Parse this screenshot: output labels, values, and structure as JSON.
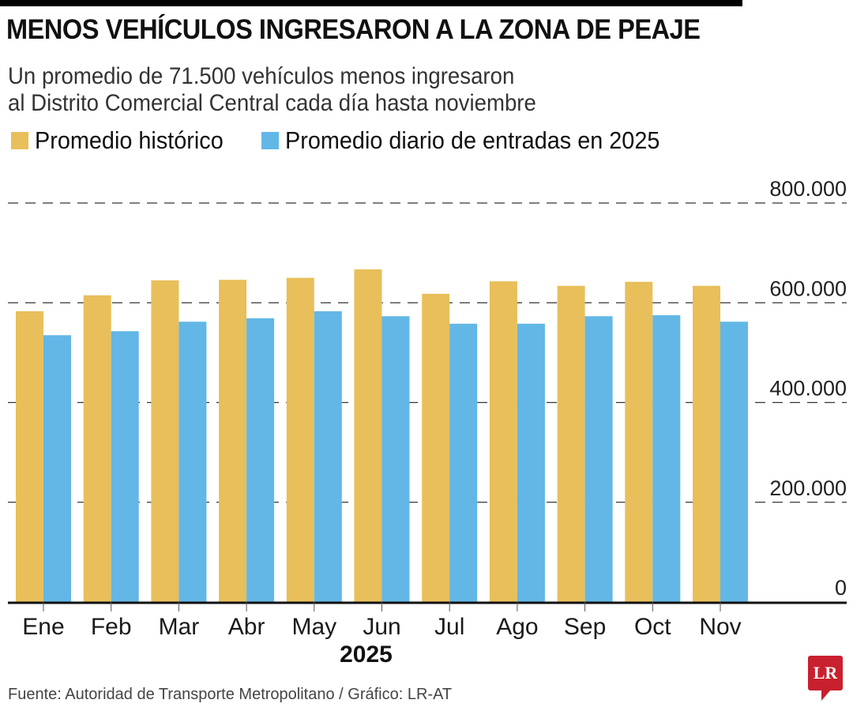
{
  "header": {
    "title": "MENOS VEHÍCULOS INGRESARON A LA ZONA DE PEAJE",
    "subtitle_line1": "Un promedio de 71.500 vehículos menos  ingresaron",
    "subtitle_line2": "al Distrito Comercial Central cada día hasta noviembre"
  },
  "footer": {
    "source": "Fuente: Autoridad de Transporte Metropolitano / Gráfico: LR-AT",
    "logo_text": "LR",
    "logo_color": "#c8202f"
  },
  "chart_data": {
    "type": "bar",
    "title": "MENOS VEHÍCULOS INGRESARON A LA ZONA DE PEAJE",
    "subtitle": "Un promedio de 71.500 vehículos menos ingresaron al Distrito Comercial Central cada día hasta noviembre",
    "xlabel": "2025",
    "ylabel": "",
    "categories": [
      "Ene",
      "Feb",
      "Mar",
      "Abr",
      "May",
      "Jun",
      "Jul",
      "Ago",
      "Sep",
      "Oct",
      "Nov"
    ],
    "series": [
      {
        "name": "Promedio histórico",
        "color": "#e8bf5a",
        "values": [
          583000,
          615000,
          645000,
          646000,
          650000,
          667000,
          618000,
          643000,
          634000,
          642000,
          634000
        ]
      },
      {
        "name": "Promedio diario de entradas en 2025",
        "color": "#62b7e6",
        "values": [
          535000,
          543000,
          562000,
          569000,
          583000,
          573000,
          558000,
          558000,
          573000,
          575000,
          562000
        ]
      }
    ],
    "ylim": [
      0,
      800000
    ],
    "yticks": [
      0,
      200000,
      400000,
      600000,
      800000
    ],
    "ytick_labels": [
      "0",
      "200.000",
      "400.000",
      "600.000",
      "800.000"
    ],
    "grid": "dashed horizontal",
    "y_axis_position": "right",
    "legend_position": "top-left"
  }
}
